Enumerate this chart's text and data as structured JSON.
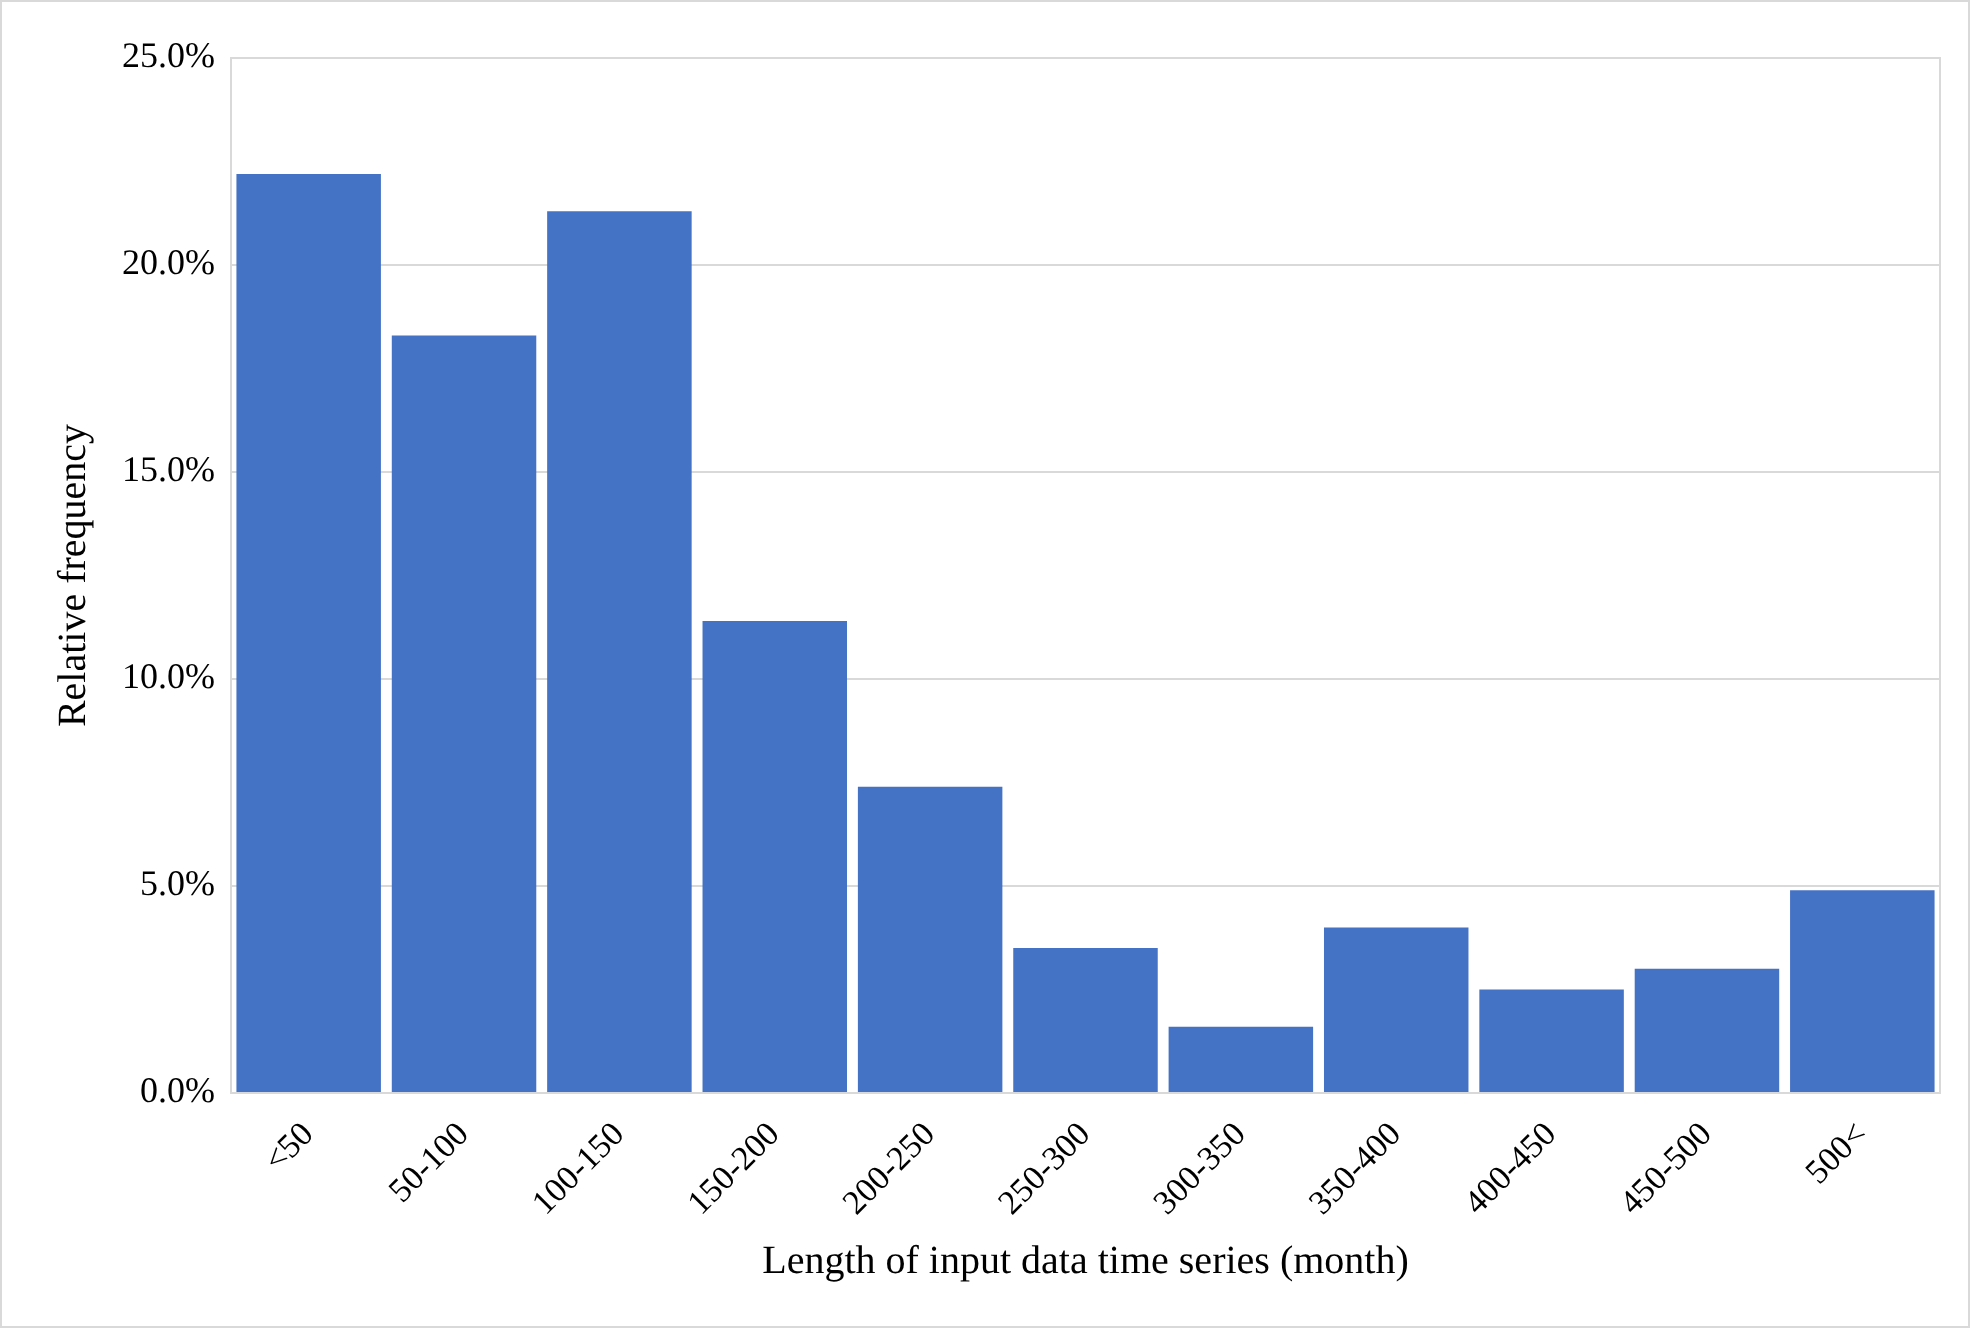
{
  "chart_data": {
    "type": "bar",
    "xlabel": "Length of input data time series (month)",
    "ylabel": "Relative frequency",
    "categories": [
      "<50",
      "50-100",
      "100-150",
      "150-200",
      "200-250",
      "250-300",
      "300-350",
      "350-400",
      "400-450",
      "450-500",
      "500<"
    ],
    "values": [
      22.2,
      18.3,
      21.3,
      11.4,
      7.4,
      3.5,
      1.6,
      4.0,
      2.5,
      3.0,
      4.9
    ],
    "color": "#4472c4",
    "ylim": [
      0,
      25
    ],
    "yticks": [
      {
        "value": 0,
        "label": "0.0%"
      },
      {
        "value": 5,
        "label": "5.0%"
      },
      {
        "value": 10,
        "label": "10.0%"
      },
      {
        "value": 15,
        "label": "15.0%"
      },
      {
        "value": 20,
        "label": "20.0%"
      },
      {
        "value": 25,
        "label": "25.0%"
      }
    ],
    "grid": "y",
    "legend": false
  }
}
